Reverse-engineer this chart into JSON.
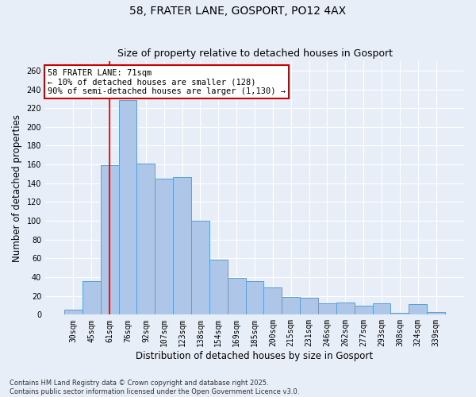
{
  "title": "58, FRATER LANE, GOSPORT, PO12 4AX",
  "subtitle": "Size of property relative to detached houses in Gosport",
  "xlabel": "Distribution of detached houses by size in Gosport",
  "ylabel": "Number of detached properties",
  "footnote": "Contains HM Land Registry data © Crown copyright and database right 2025.\nContains public sector information licensed under the Open Government Licence v3.0.",
  "categories": [
    "30sqm",
    "45sqm",
    "61sqm",
    "76sqm",
    "92sqm",
    "107sqm",
    "123sqm",
    "138sqm",
    "154sqm",
    "169sqm",
    "185sqm",
    "200sqm",
    "215sqm",
    "231sqm",
    "246sqm",
    "262sqm",
    "277sqm",
    "293sqm",
    "308sqm",
    "324sqm",
    "339sqm"
  ],
  "values": [
    5,
    36,
    159,
    229,
    161,
    145,
    147,
    100,
    59,
    39,
    36,
    29,
    19,
    18,
    12,
    13,
    10,
    12,
    2,
    11,
    3
  ],
  "bar_color": "#aec6e8",
  "bar_edge_color": "#5a9fd4",
  "background_color": "#e8eef8",
  "grid_color": "#ffffff",
  "annotation_text": "58 FRATER LANE: 71sqm\n← 10% of detached houses are smaller (128)\n90% of semi-detached houses are larger (1,130) →",
  "annotation_box_color": "#ffffff",
  "annotation_box_edge_color": "#cc0000",
  "vline_x": 2.0,
  "vline_color": "#cc0000",
  "ylim": [
    0,
    270
  ],
  "yticks": [
    0,
    20,
    40,
    60,
    80,
    100,
    120,
    140,
    160,
    180,
    200,
    220,
    240,
    260
  ],
  "title_fontsize": 10,
  "subtitle_fontsize": 9,
  "axis_label_fontsize": 8.5,
  "tick_fontsize": 7,
  "annotation_fontsize": 7.5,
  "footnote_fontsize": 6
}
